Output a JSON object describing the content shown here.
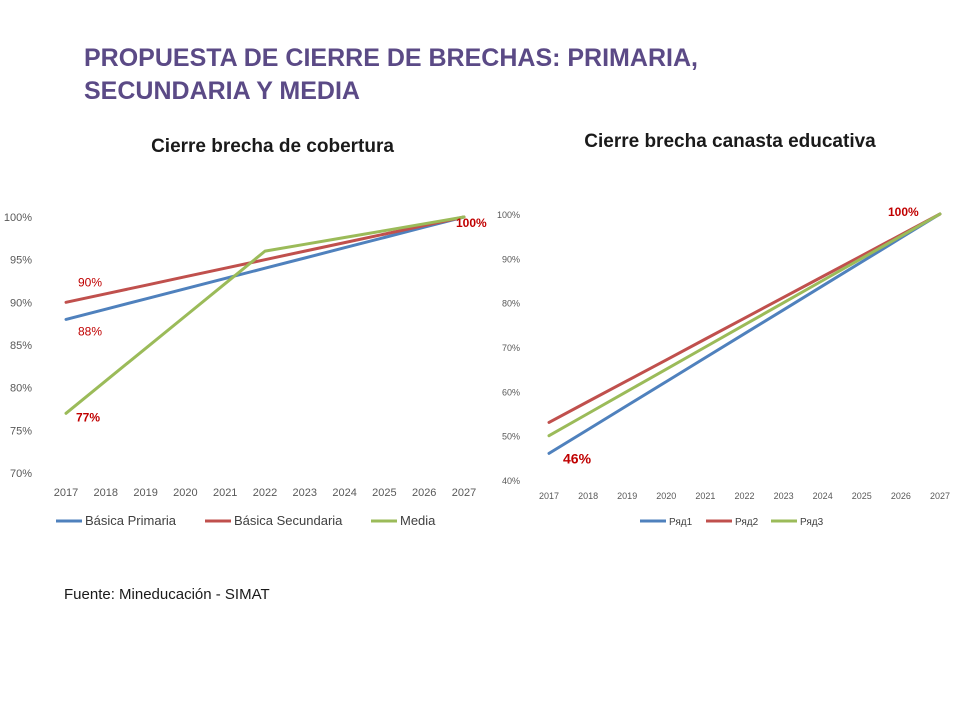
{
  "slide": {
    "title": "PROPUESTA DE CIERRE DE BRECHAS: PRIMARIA, SECUNDARIA Y MEDIA",
    "source": "Fuente: Mineducación - SIMAT"
  },
  "colors": {
    "title": "#5b4a86",
    "blue": "#4f81bd",
    "red": "#c0504d",
    "green": "#9bbb59",
    "label": "#c00000"
  },
  "chart_data": [
    {
      "type": "line",
      "title": "Cierre brecha de cobertura",
      "categories": [
        "2017",
        "2018",
        "2019",
        "2020",
        "2021",
        "2022",
        "2023",
        "2024",
        "2025",
        "2026",
        "2027"
      ],
      "ylim": [
        0.7,
        1.0
      ],
      "yticks": [
        "70%",
        "75%",
        "80%",
        "85%",
        "90%",
        "95%",
        "100%"
      ],
      "grid": false,
      "legend_position": "bottom",
      "series": [
        {
          "name": "Básica Primaria",
          "color": "#4f81bd",
          "values": [
            0.88,
            0.892,
            0.904,
            0.916,
            0.928,
            0.94,
            0.952,
            0.964,
            0.976,
            0.988,
            1.0
          ]
        },
        {
          "name": "Básica Secundaria",
          "color": "#c0504d",
          "values": [
            0.9,
            0.91,
            0.92,
            0.93,
            0.94,
            0.95,
            0.96,
            0.97,
            0.98,
            0.99,
            1.0
          ]
        },
        {
          "name": "Media",
          "color": "#9bbb59",
          "values": [
            0.77,
            0.808,
            0.846,
            0.884,
            0.922,
            0.96,
            0.968,
            0.976,
            0.984,
            0.992,
            1.0
          ]
        }
      ],
      "data_labels": [
        {
          "text": "90%",
          "series": 1,
          "index": 0,
          "style": "normal"
        },
        {
          "text": "88%",
          "series": 0,
          "index": 0,
          "style": "normal"
        },
        {
          "text": "77%",
          "series": 2,
          "index": 0,
          "style": "bold"
        },
        {
          "text": "100%",
          "series": 1,
          "index": 10,
          "style": "bold"
        }
      ]
    },
    {
      "type": "line",
      "title": "Cierre brecha canasta educativa",
      "categories": [
        "2017",
        "2018",
        "2019",
        "2020",
        "2021",
        "2022",
        "2023",
        "2024",
        "2025",
        "2026",
        "2027"
      ],
      "ylim": [
        0.4,
        1.0
      ],
      "yticks": [
        "40%",
        "50%",
        "60%",
        "70%",
        "80%",
        "90%",
        "100%"
      ],
      "grid": false,
      "legend_position": "bottom",
      "series": [
        {
          "name": "Ряд1",
          "color": "#4f81bd",
          "values": [
            0.46,
            0.514,
            0.568,
            0.622,
            0.676,
            0.73,
            0.784,
            0.838,
            0.892,
            0.946,
            1.0
          ]
        },
        {
          "name": "Ряд2",
          "color": "#c0504d",
          "values": [
            0.53,
            0.577,
            0.624,
            0.671,
            0.718,
            0.765,
            0.812,
            0.859,
            0.906,
            0.953,
            1.0
          ]
        },
        {
          "name": "Ряд3",
          "color": "#9bbb59",
          "values": [
            0.5,
            0.55,
            0.6,
            0.65,
            0.7,
            0.75,
            0.8,
            0.85,
            0.9,
            0.95,
            1.0
          ]
        }
      ],
      "data_labels": [
        {
          "text": "46%",
          "series": 0,
          "index": 0,
          "style": "big"
        },
        {
          "text": "100%",
          "series": 1,
          "index": 10,
          "style": "bold"
        }
      ]
    }
  ]
}
